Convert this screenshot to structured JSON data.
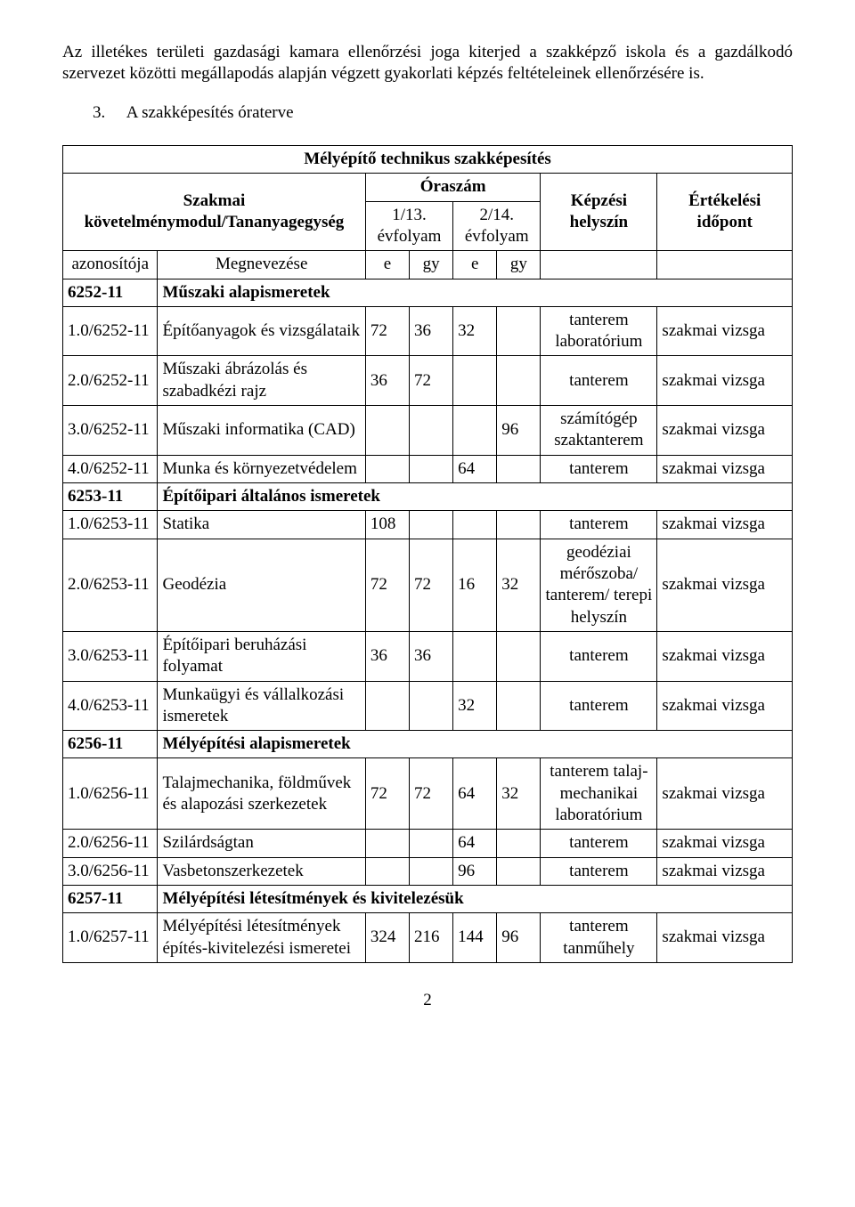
{
  "intro_paragraph": "Az illetékes területi gazdasági kamara ellenőrzési joga kiterjed a szakképző iskola és a gazdálkodó szervezet közötti megállapodás alapján végzett gyakorlati képzés feltételeinek ellenőrzésére is.",
  "section_number": "3.",
  "section_title": "A szakképesítés óraterve",
  "table_title": "Mélyépítő technikus szakképesítés",
  "header": {
    "col1_label": "Szakmai követelménymodul/Tananyagegység",
    "oraszam": "Óraszám",
    "kepzesi_helyszin": "Képzési helyszín",
    "ertekelesi_idopont": "Értékelési időpont",
    "evf1": "1/13. évfolyam",
    "evf2": "2/14. évfolyam",
    "azon": "azonosítója",
    "megnevezese": "Megnevezése",
    "e": "e",
    "gy": "gy"
  },
  "rows": [
    {
      "type": "section",
      "az": "6252-11",
      "nev": "Műszaki alapismeretek"
    },
    {
      "type": "data",
      "az": "1.0/6252-11",
      "nev": "Építőanyagok és vizsgálataik",
      "e1": "72",
      "gy1": "36",
      "e2": "32",
      "gy2": "",
      "hely": "tanterem laboratórium",
      "ert": "szakmai vizsga"
    },
    {
      "type": "data",
      "az": "2.0/6252-11",
      "nev": "Műszaki ábrázolás és szabadkézi rajz",
      "e1": "36",
      "gy1": "72",
      "e2": "",
      "gy2": "",
      "hely": "tanterem",
      "ert": "szakmai vizsga"
    },
    {
      "type": "data",
      "az": "3.0/6252-11",
      "nev": "Műszaki informatika (CAD)",
      "e1": "",
      "gy1": "",
      "e2": "",
      "gy2": "96",
      "hely": "számítógép szaktanterem",
      "ert": "szakmai vizsga"
    },
    {
      "type": "data",
      "az": "4.0/6252-11",
      "nev": "Munka és környezetvédelem",
      "e1": "",
      "gy1": "",
      "e2": "64",
      "gy2": "",
      "hely": "tanterem",
      "ert": "szakmai vizsga"
    },
    {
      "type": "section",
      "az": "6253-11",
      "nev": "Építőipari általános ismeretek"
    },
    {
      "type": "data",
      "az": "1.0/6253-11",
      "nev": "Statika",
      "e1": "108",
      "gy1": "",
      "e2": "",
      "gy2": "",
      "hely": "tanterem",
      "ert": "szakmai vizsga"
    },
    {
      "type": "data",
      "az": "2.0/6253-11",
      "nev": "Geodézia",
      "e1": "72",
      "gy1": "72",
      "e2": "16",
      "gy2": "32",
      "hely": "geodéziai mérőszoba/ tanterem/ terepi helyszín",
      "ert": "szakmai vizsga"
    },
    {
      "type": "data",
      "az": "3.0/6253-11",
      "nev": "Építőipari beruházási folyamat",
      "e1": "36",
      "gy1": "36",
      "e2": "",
      "gy2": "",
      "hely": "tanterem",
      "ert": "szakmai vizsga"
    },
    {
      "type": "data",
      "az": "4.0/6253-11",
      "nev": "Munkaügyi és vállalkozási ismeretek",
      "e1": "",
      "gy1": "",
      "e2": "32",
      "gy2": "",
      "hely": "tanterem",
      "ert": "szakmai vizsga"
    },
    {
      "type": "section",
      "az": "6256-11",
      "nev": "Mélyépítési alapismeretek"
    },
    {
      "type": "data",
      "az": "1.0/6256-11",
      "nev": "Talajmechanika, földművek és alapozási szerkezetek",
      "e1": "72",
      "gy1": "72",
      "e2": "64",
      "gy2": "32",
      "hely": "tanterem talaj- mechanikai laboratórium",
      "ert": "szakmai vizsga"
    },
    {
      "type": "data",
      "az": "2.0/6256-11",
      "nev": "Szilárdságtan",
      "e1": "",
      "gy1": "",
      "e2": "64",
      "gy2": "",
      "hely": "tanterem",
      "ert": "szakmai vizsga"
    },
    {
      "type": "data",
      "az": "3.0/6256-11",
      "nev": "Vasbetonszerkezetek",
      "e1": "",
      "gy1": "",
      "e2": "96",
      "gy2": "",
      "hely": "tanterem",
      "ert": "szakmai vizsga"
    },
    {
      "type": "section",
      "az": "6257-11",
      "nev": "Mélyépítési létesítmények és kivitelezésük"
    },
    {
      "type": "data",
      "az": "1.0/6257-11",
      "nev": "Mélyépítési létesítmények építés-kivitelezési ismeretei",
      "e1": "324",
      "gy1": "216",
      "e2": "144",
      "gy2": "96",
      "hely": "tanterem tanműhely",
      "ert": "szakmai vizsga"
    }
  ],
  "page_number": "2"
}
